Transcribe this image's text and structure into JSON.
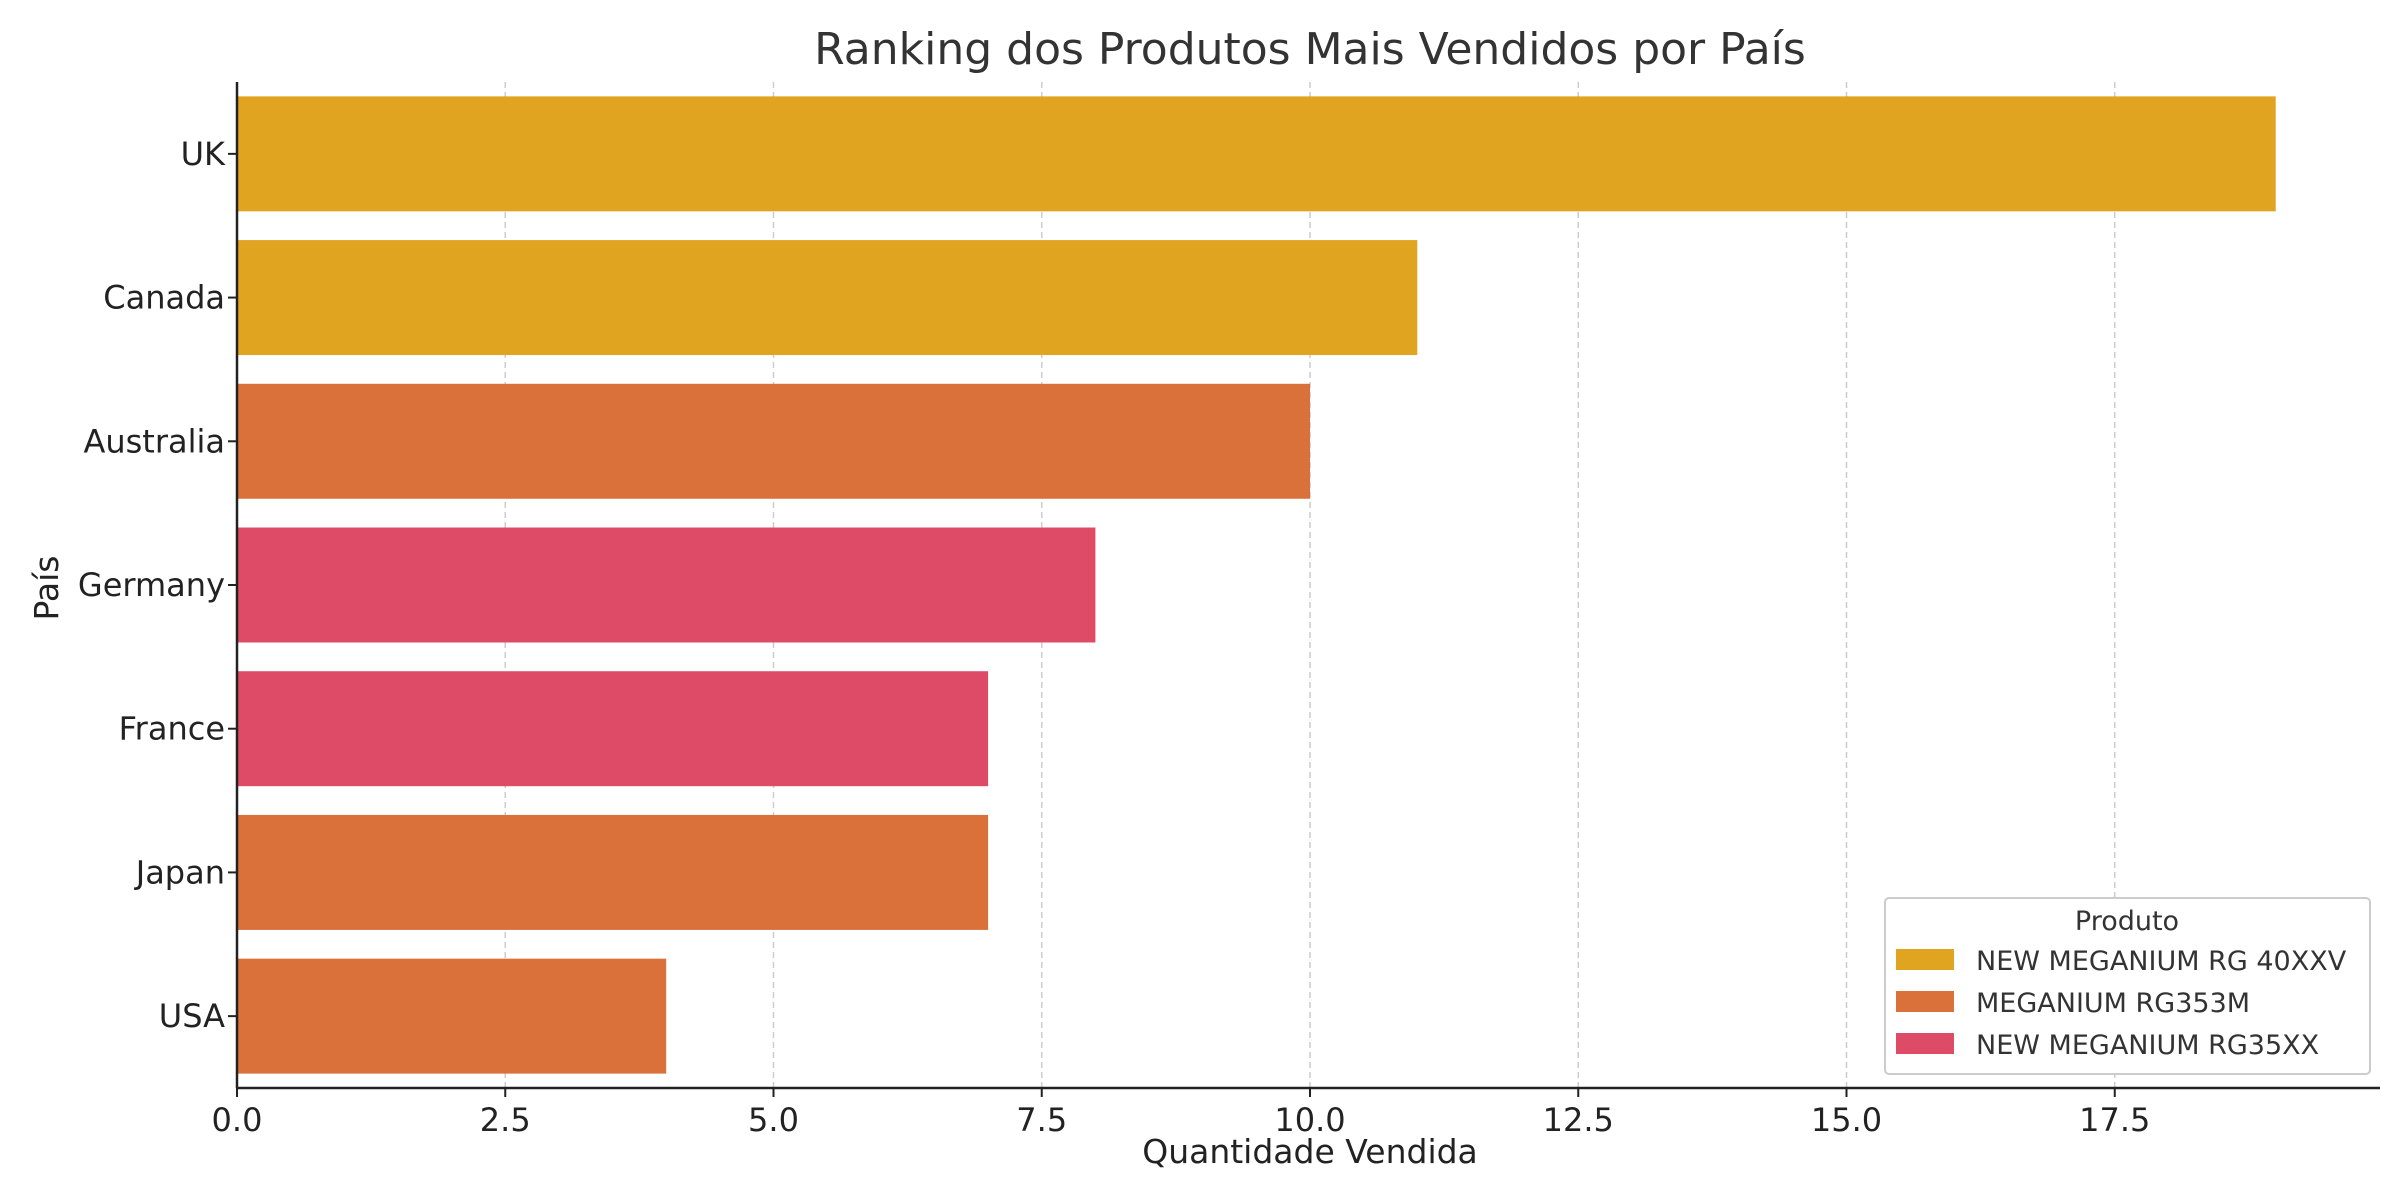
{
  "chart_data": {
    "type": "bar",
    "orientation": "horizontal",
    "title": "Ranking dos Produtos Mais Vendidos por País",
    "xlabel": "Quantidade Vendida",
    "ylabel": "País",
    "xlim": [
      0,
      20
    ],
    "x_ticks": [
      "0.0",
      "2.5",
      "5.0",
      "7.5",
      "10.0",
      "12.5",
      "15.0",
      "17.5"
    ],
    "x_tick_values": [
      0,
      2.5,
      5,
      7.5,
      10,
      12.5,
      15,
      17.5
    ],
    "grid": "x-dashed",
    "legend_position": "bottom-right",
    "legend_title": "Produto",
    "products": [
      {
        "name": "NEW MEGANIUM RG 40XXV",
        "color": "#E0A420"
      },
      {
        "name": "MEGANIUM RG353M",
        "color": "#DB713A"
      },
      {
        "name": "NEW MEGANIUM RG35XX",
        "color": "#DD4B67"
      }
    ],
    "categories": [
      "UK",
      "Canada",
      "Australia",
      "Germany",
      "France",
      "Japan",
      "USA"
    ],
    "values": [
      19,
      11,
      10,
      8,
      7,
      7,
      4
    ],
    "bar_products": [
      "NEW MEGANIUM RG 40XXV",
      "NEW MEGANIUM RG 40XXV",
      "MEGANIUM RG353M",
      "NEW MEGANIUM RG35XX",
      "NEW MEGANIUM RG35XX",
      "MEGANIUM RG353M",
      "MEGANIUM RG353M"
    ]
  }
}
